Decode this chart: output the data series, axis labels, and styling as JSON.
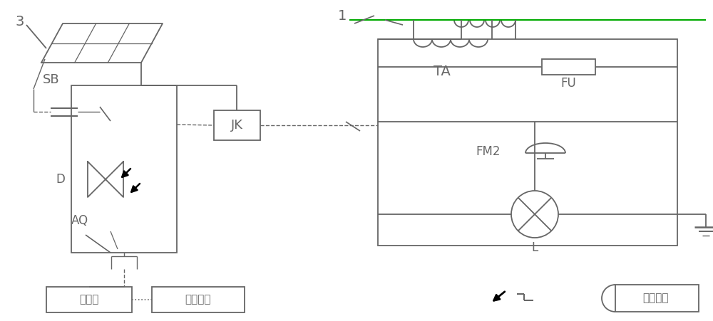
{
  "bg_color": "#ffffff",
  "lc": "#666666",
  "gc": "#00aa00",
  "lw": 1.3,
  "fig_width": 10.0,
  "fig_height": 4.51,
  "labels": {
    "num1": "1",
    "num3": "3",
    "SB": "SB",
    "JK": "JK",
    "D": "D",
    "AQ": "AQ",
    "TA": "TA",
    "FU": "FU",
    "FM2": "FM2",
    "L": "L",
    "controller": "控制器",
    "receive": "接收模块",
    "transmit": "发射模块"
  }
}
